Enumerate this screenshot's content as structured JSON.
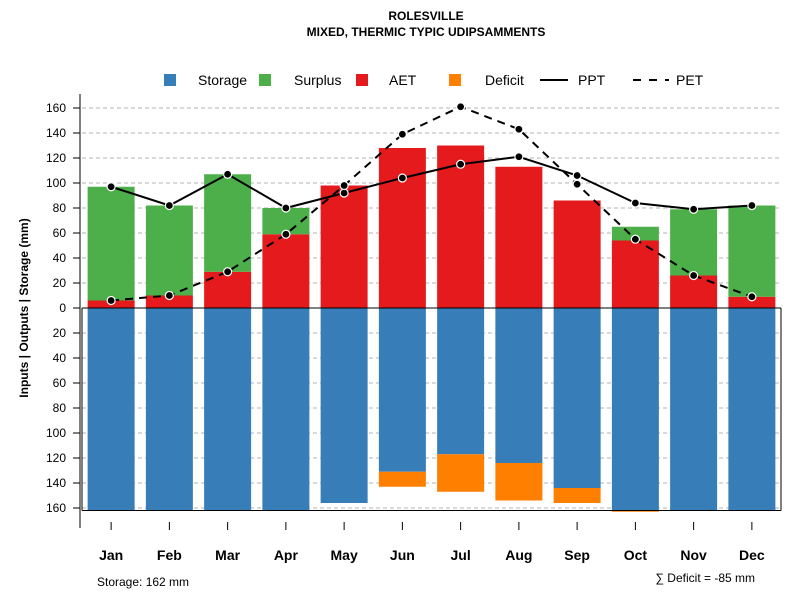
{
  "chart_data": {
    "type": "bar",
    "title": "ROLESVILLE",
    "subtitle": "MIXED, THERMIC TYPIC UDIPSAMMENTS",
    "ylabel": "Inputs | Outputs | Storage    (mm)",
    "categories": [
      "Jan",
      "Feb",
      "Mar",
      "Apr",
      "May",
      "Jun",
      "Jul",
      "Aug",
      "Sep",
      "Oct",
      "Nov",
      "Dec"
    ],
    "ylim": [
      -160,
      160
    ],
    "yticks": [
      160,
      140,
      120,
      100,
      80,
      60,
      40,
      20,
      0,
      20,
      40,
      60,
      80,
      100,
      120,
      140,
      160
    ],
    "grid": true,
    "legend_position": "top",
    "legend": [
      {
        "label": "Storage",
        "kind": "square",
        "color": "#377EB8"
      },
      {
        "label": "Surplus",
        "kind": "square",
        "color": "#4DAF4A"
      },
      {
        "label": "AET",
        "kind": "square",
        "color": "#E41A1C"
      },
      {
        "label": "Deficit",
        "kind": "square",
        "color": "#FF7F00"
      },
      {
        "label": "PPT",
        "kind": "solid-line",
        "color": "#000000"
      },
      {
        "label": "PET",
        "kind": "dashed-line",
        "color": "#000000"
      }
    ],
    "series": [
      {
        "name": "AET",
        "color": "#E41A1C",
        "values": [
          6,
          10,
          29,
          59,
          98,
          128,
          130,
          113,
          86,
          54,
          26,
          9
        ]
      },
      {
        "name": "Surplus",
        "color": "#4DAF4A",
        "values": [
          91,
          72,
          78,
          21,
          0,
          0,
          0,
          0,
          0,
          11,
          53,
          73
        ]
      },
      {
        "name": "Storage",
        "color": "#377EB8",
        "values": [
          162,
          162,
          162,
          162,
          156,
          131,
          117,
          124,
          144,
          162,
          162,
          162
        ]
      },
      {
        "name": "Deficit",
        "color": "#FF7F00",
        "values": [
          0,
          0,
          0,
          0,
          0,
          12,
          30,
          30,
          12,
          1,
          0,
          0
        ]
      },
      {
        "name": "PPT",
        "color": "#000000",
        "style": "solid",
        "values": [
          97,
          82,
          107,
          80,
          92,
          104,
          115,
          121,
          106,
          84,
          79,
          82
        ]
      },
      {
        "name": "PET",
        "color": "#000000",
        "style": "dashed",
        "values": [
          6,
          10,
          29,
          59,
          98,
          139,
          161,
          143,
          99,
          55,
          26,
          9
        ]
      }
    ],
    "annotations": {
      "storage": "Storage: 162 mm",
      "deficit": "∑ Deficit = -85 mm"
    }
  }
}
